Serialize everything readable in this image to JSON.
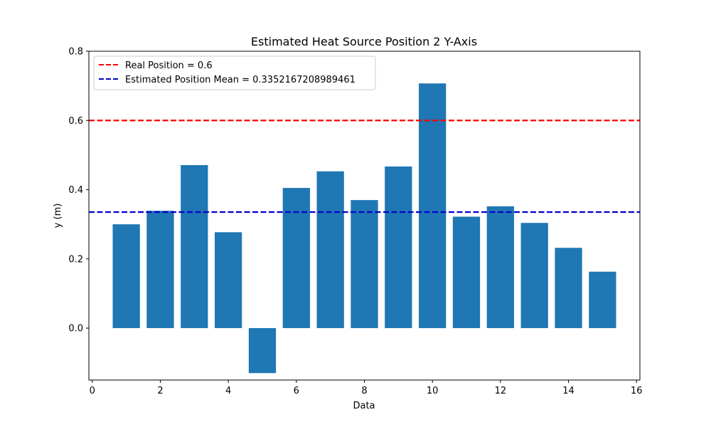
{
  "chart_data": {
    "type": "bar",
    "title": "Estimated Heat Source Position 2 Y-Axis",
    "xlabel": "Data",
    "ylabel": "y (m)",
    "x": [
      1,
      2,
      3,
      4,
      5,
      6,
      7,
      8,
      9,
      10,
      11,
      12,
      13,
      14,
      15
    ],
    "values": [
      0.3,
      0.339,
      0.471,
      0.277,
      -0.13,
      0.405,
      0.453,
      0.37,
      0.467,
      0.707,
      0.322,
      0.352,
      0.304,
      0.232,
      0.163
    ],
    "xlim": [
      -0.1,
      16.1
    ],
    "ylim": [
      -0.15,
      0.8
    ],
    "xticks": [
      0,
      2,
      4,
      6,
      8,
      10,
      12,
      14,
      16
    ],
    "xtick_labels": [
      "0",
      "2",
      "4",
      "6",
      "8",
      "10",
      "12",
      "14",
      "16"
    ],
    "yticks": [
      0.0,
      0.2,
      0.4,
      0.6,
      0.8
    ],
    "ytick_labels": [
      "0.0",
      "0.2",
      "0.4",
      "0.6",
      "0.8"
    ],
    "bar_color": "#1f77b4",
    "grid": false,
    "legend_position": "top-left",
    "reference_lines": [
      {
        "label": "Real Position = 0.6",
        "y": 0.6,
        "color": "#ff0000",
        "style": "dashed"
      },
      {
        "label": "Estimated Position Mean = 0.3352167208989461",
        "y": 0.3352167208989461,
        "color": "#0000cc",
        "style": "dashed"
      }
    ]
  }
}
